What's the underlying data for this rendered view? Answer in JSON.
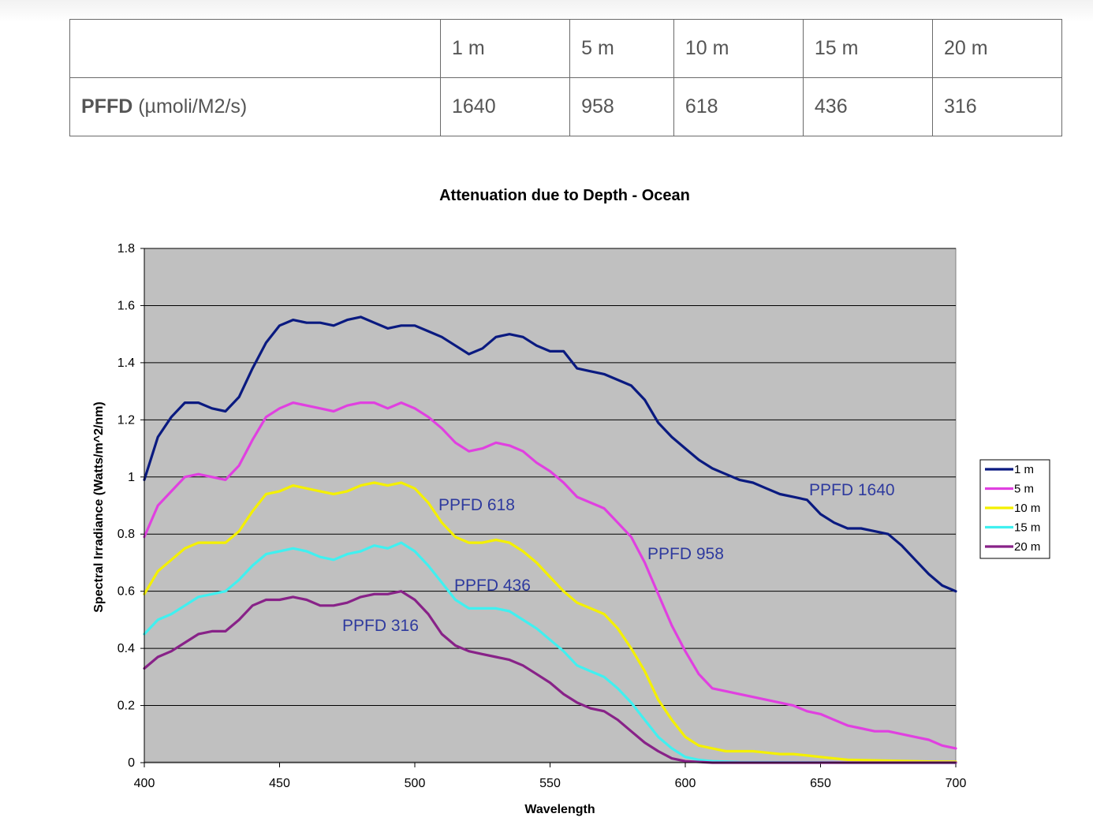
{
  "table": {
    "header": [
      "",
      "1 m",
      "5 m",
      "10 m",
      "15 m",
      "20 m"
    ],
    "row_label_bold": "PFFD",
    "row_label_unit": "(µmoli/M2/s)",
    "row_values": [
      "1640",
      "958",
      "618",
      "436",
      "316"
    ]
  },
  "chart_data": {
    "type": "line",
    "title": "Attenuation due to Depth - Ocean",
    "xlabel": "Wavelength",
    "ylabel": "Spectral Irradiance (Watts/m^2/nm)",
    "xlim": [
      400,
      700
    ],
    "ylim": [
      0,
      1.8
    ],
    "x_ticks": [
      "400",
      "450",
      "500",
      "550",
      "600",
      "650",
      "700"
    ],
    "y_ticks": [
      "0",
      "0.2",
      "0.4",
      "0.6",
      "0.8",
      "1",
      "1.2",
      "1.4",
      "1.6",
      "1.8"
    ],
    "grid": true,
    "legend_position": "right",
    "plot_background": "#c0c0c0",
    "series": [
      {
        "name": "1 m",
        "color": "#0a1a80",
        "points": [
          [
            400,
            0.99
          ],
          [
            405,
            1.14
          ],
          [
            410,
            1.21
          ],
          [
            415,
            1.26
          ],
          [
            420,
            1.26
          ],
          [
            425,
            1.24
          ],
          [
            430,
            1.23
          ],
          [
            435,
            1.28
          ],
          [
            440,
            1.38
          ],
          [
            445,
            1.47
          ],
          [
            450,
            1.53
          ],
          [
            455,
            1.55
          ],
          [
            460,
            1.54
          ],
          [
            465,
            1.54
          ],
          [
            470,
            1.53
          ],
          [
            475,
            1.55
          ],
          [
            480,
            1.56
          ],
          [
            485,
            1.54
          ],
          [
            490,
            1.52
          ],
          [
            495,
            1.53
          ],
          [
            500,
            1.53
          ],
          [
            505,
            1.51
          ],
          [
            510,
            1.49
          ],
          [
            515,
            1.46
          ],
          [
            520,
            1.43
          ],
          [
            525,
            1.45
          ],
          [
            530,
            1.49
          ],
          [
            535,
            1.5
          ],
          [
            540,
            1.49
          ],
          [
            545,
            1.46
          ],
          [
            550,
            1.44
          ],
          [
            555,
            1.44
          ],
          [
            560,
            1.38
          ],
          [
            565,
            1.37
          ],
          [
            570,
            1.36
          ],
          [
            575,
            1.34
          ],
          [
            580,
            1.32
          ],
          [
            585,
            1.27
          ],
          [
            590,
            1.19
          ],
          [
            595,
            1.14
          ],
          [
            600,
            1.1
          ],
          [
            605,
            1.06
          ],
          [
            610,
            1.03
          ],
          [
            615,
            1.01
          ],
          [
            620,
            0.99
          ],
          [
            625,
            0.98
          ],
          [
            630,
            0.96
          ],
          [
            635,
            0.94
          ],
          [
            640,
            0.93
          ],
          [
            645,
            0.92
          ],
          [
            650,
            0.87
          ],
          [
            655,
            0.84
          ],
          [
            660,
            0.82
          ],
          [
            665,
            0.82
          ],
          [
            670,
            0.81
          ],
          [
            675,
            0.8
          ],
          [
            680,
            0.76
          ],
          [
            685,
            0.71
          ],
          [
            690,
            0.66
          ],
          [
            695,
            0.62
          ],
          [
            700,
            0.6
          ]
        ]
      },
      {
        "name": "5 m",
        "color": "#e040e0",
        "points": [
          [
            400,
            0.79
          ],
          [
            405,
            0.9
          ],
          [
            410,
            0.95
          ],
          [
            415,
            1.0
          ],
          [
            420,
            1.01
          ],
          [
            425,
            1.0
          ],
          [
            430,
            0.99
          ],
          [
            435,
            1.04
          ],
          [
            440,
            1.13
          ],
          [
            445,
            1.21
          ],
          [
            450,
            1.24
          ],
          [
            455,
            1.26
          ],
          [
            460,
            1.25
          ],
          [
            465,
            1.24
          ],
          [
            470,
            1.23
          ],
          [
            475,
            1.25
          ],
          [
            480,
            1.26
          ],
          [
            485,
            1.26
          ],
          [
            490,
            1.24
          ],
          [
            495,
            1.26
          ],
          [
            500,
            1.24
          ],
          [
            505,
            1.21
          ],
          [
            510,
            1.17
          ],
          [
            515,
            1.12
          ],
          [
            520,
            1.09
          ],
          [
            525,
            1.1
          ],
          [
            530,
            1.12
          ],
          [
            535,
            1.11
          ],
          [
            540,
            1.09
          ],
          [
            545,
            1.05
          ],
          [
            550,
            1.02
          ],
          [
            555,
            0.98
          ],
          [
            560,
            0.93
          ],
          [
            565,
            0.91
          ],
          [
            570,
            0.89
          ],
          [
            575,
            0.84
          ],
          [
            580,
            0.79
          ],
          [
            585,
            0.7
          ],
          [
            590,
            0.59
          ],
          [
            595,
            0.48
          ],
          [
            600,
            0.39
          ],
          [
            605,
            0.31
          ],
          [
            610,
            0.26
          ],
          [
            615,
            0.25
          ],
          [
            620,
            0.24
          ],
          [
            625,
            0.23
          ],
          [
            630,
            0.22
          ],
          [
            635,
            0.21
          ],
          [
            640,
            0.2
          ],
          [
            645,
            0.18
          ],
          [
            650,
            0.17
          ],
          [
            655,
            0.15
          ],
          [
            660,
            0.13
          ],
          [
            665,
            0.12
          ],
          [
            670,
            0.11
          ],
          [
            675,
            0.11
          ],
          [
            680,
            0.1
          ],
          [
            685,
            0.09
          ],
          [
            690,
            0.08
          ],
          [
            695,
            0.06
          ],
          [
            700,
            0.05
          ]
        ]
      },
      {
        "name": "10 m",
        "color": "#f4f000",
        "points": [
          [
            400,
            0.59
          ],
          [
            405,
            0.67
          ],
          [
            410,
            0.71
          ],
          [
            415,
            0.75
          ],
          [
            420,
            0.77
          ],
          [
            425,
            0.77
          ],
          [
            430,
            0.77
          ],
          [
            435,
            0.81
          ],
          [
            440,
            0.88
          ],
          [
            445,
            0.94
          ],
          [
            450,
            0.95
          ],
          [
            455,
            0.97
          ],
          [
            460,
            0.96
          ],
          [
            465,
            0.95
          ],
          [
            470,
            0.94
          ],
          [
            475,
            0.95
          ],
          [
            480,
            0.97
          ],
          [
            485,
            0.98
          ],
          [
            490,
            0.97
          ],
          [
            495,
            0.98
          ],
          [
            500,
            0.96
          ],
          [
            505,
            0.91
          ],
          [
            510,
            0.84
          ],
          [
            515,
            0.79
          ],
          [
            520,
            0.77
          ],
          [
            525,
            0.77
          ],
          [
            530,
            0.78
          ],
          [
            535,
            0.77
          ],
          [
            540,
            0.74
          ],
          [
            545,
            0.7
          ],
          [
            550,
            0.65
          ],
          [
            555,
            0.6
          ],
          [
            560,
            0.56
          ],
          [
            565,
            0.54
          ],
          [
            570,
            0.52
          ],
          [
            575,
            0.47
          ],
          [
            580,
            0.4
          ],
          [
            585,
            0.32
          ],
          [
            590,
            0.22
          ],
          [
            595,
            0.15
          ],
          [
            600,
            0.09
          ],
          [
            605,
            0.06
          ],
          [
            610,
            0.05
          ],
          [
            615,
            0.04
          ],
          [
            620,
            0.04
          ],
          [
            625,
            0.04
          ],
          [
            630,
            0.035
          ],
          [
            635,
            0.03
          ],
          [
            640,
            0.03
          ],
          [
            645,
            0.025
          ],
          [
            650,
            0.02
          ],
          [
            660,
            0.01
          ],
          [
            670,
            0.008
          ],
          [
            680,
            0.006
          ],
          [
            690,
            0.004
          ],
          [
            700,
            0.003
          ]
        ]
      },
      {
        "name": "15 m",
        "color": "#40f0f0",
        "points": [
          [
            400,
            0.45
          ],
          [
            405,
            0.5
          ],
          [
            410,
            0.52
          ],
          [
            415,
            0.55
          ],
          [
            420,
            0.58
          ],
          [
            425,
            0.59
          ],
          [
            430,
            0.6
          ],
          [
            435,
            0.64
          ],
          [
            440,
            0.69
          ],
          [
            445,
            0.73
          ],
          [
            450,
            0.74
          ],
          [
            455,
            0.75
          ],
          [
            460,
            0.74
          ],
          [
            465,
            0.72
          ],
          [
            470,
            0.71
          ],
          [
            475,
            0.73
          ],
          [
            480,
            0.74
          ],
          [
            485,
            0.76
          ],
          [
            490,
            0.75
          ],
          [
            495,
            0.77
          ],
          [
            500,
            0.74
          ],
          [
            505,
            0.69
          ],
          [
            510,
            0.63
          ],
          [
            515,
            0.57
          ],
          [
            520,
            0.54
          ],
          [
            525,
            0.54
          ],
          [
            530,
            0.54
          ],
          [
            535,
            0.53
          ],
          [
            540,
            0.5
          ],
          [
            545,
            0.47
          ],
          [
            550,
            0.43
          ],
          [
            555,
            0.39
          ],
          [
            560,
            0.34
          ],
          [
            565,
            0.32
          ],
          [
            570,
            0.3
          ],
          [
            575,
            0.26
          ],
          [
            580,
            0.21
          ],
          [
            585,
            0.15
          ],
          [
            590,
            0.09
          ],
          [
            595,
            0.05
          ],
          [
            600,
            0.02
          ],
          [
            605,
            0.01
          ],
          [
            610,
            0.005
          ],
          [
            620,
            0.002
          ],
          [
            640,
            0.001
          ],
          [
            660,
            0.0
          ],
          [
            700,
            0.0
          ]
        ]
      },
      {
        "name": "20 m",
        "color": "#882288",
        "points": [
          [
            400,
            0.33
          ],
          [
            405,
            0.37
          ],
          [
            410,
            0.39
          ],
          [
            415,
            0.42
          ],
          [
            420,
            0.45
          ],
          [
            425,
            0.46
          ],
          [
            430,
            0.46
          ],
          [
            435,
            0.5
          ],
          [
            440,
            0.55
          ],
          [
            445,
            0.57
          ],
          [
            450,
            0.57
          ],
          [
            455,
            0.58
          ],
          [
            460,
            0.57
          ],
          [
            465,
            0.55
          ],
          [
            470,
            0.55
          ],
          [
            475,
            0.56
          ],
          [
            480,
            0.58
          ],
          [
            485,
            0.59
          ],
          [
            490,
            0.59
          ],
          [
            495,
            0.6
          ],
          [
            500,
            0.57
          ],
          [
            505,
            0.52
          ],
          [
            510,
            0.45
          ],
          [
            515,
            0.41
          ],
          [
            520,
            0.39
          ],
          [
            525,
            0.38
          ],
          [
            530,
            0.37
          ],
          [
            535,
            0.36
          ],
          [
            540,
            0.34
          ],
          [
            545,
            0.31
          ],
          [
            550,
            0.28
          ],
          [
            555,
            0.24
          ],
          [
            560,
            0.21
          ],
          [
            565,
            0.19
          ],
          [
            570,
            0.18
          ],
          [
            575,
            0.15
          ],
          [
            580,
            0.11
          ],
          [
            585,
            0.07
          ],
          [
            590,
            0.04
          ],
          [
            595,
            0.015
          ],
          [
            600,
            0.005
          ],
          [
            610,
            0.0
          ],
          [
            700,
            0.0
          ]
        ]
      }
    ],
    "annotations": [
      "PPFD  1640",
      "PPFD 958",
      "PPFD 618",
      "PPFD 436",
      "PPFD 316"
    ],
    "annotation_color": "#2e3a9e"
  }
}
